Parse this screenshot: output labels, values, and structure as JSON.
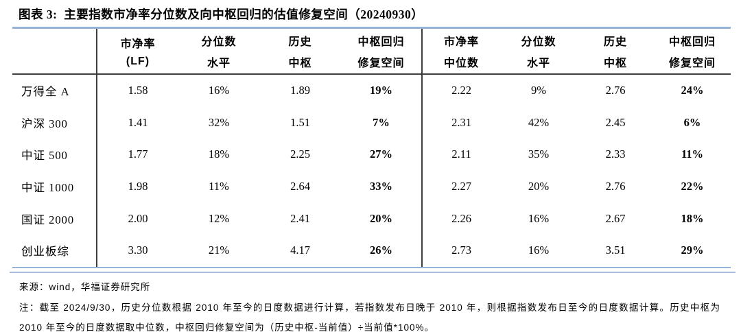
{
  "title": "图表 3:  主要指数市净率分位数及向中枢回归的估值修复空间（20240930）",
  "colors": {
    "accent_blue_line": "#95b3d7",
    "dark_rule": "#3d3d3d",
    "text": "#000000",
    "background": "#ffffff"
  },
  "table": {
    "header_cols": [
      {
        "l1": "市净率",
        "l2": "(LF)"
      },
      {
        "l1": "分位数",
        "l2": "水平"
      },
      {
        "l1": "历史",
        "l2": "中枢"
      },
      {
        "l1": "中枢回归",
        "l2": "修复空间"
      },
      {
        "l1": "市净率",
        "l2": "中位数"
      },
      {
        "l1": "分位数",
        "l2": "水平"
      },
      {
        "l1": "历史",
        "l2": "中枢"
      },
      {
        "l1": "中枢回归",
        "l2": "修复空间"
      }
    ],
    "rows": [
      {
        "label": "万得全 A",
        "values": [
          "1.58",
          "16%",
          "1.89",
          "19%",
          "2.22",
          "9%",
          "2.76",
          "24%"
        ]
      },
      {
        "label": "沪深 300",
        "values": [
          "1.41",
          "32%",
          "1.51",
          "7%",
          "2.31",
          "42%",
          "2.45",
          "6%"
        ]
      },
      {
        "label": "中证 500",
        "values": [
          "1.77",
          "18%",
          "2.25",
          "27%",
          "2.11",
          "35%",
          "2.33",
          "11%"
        ]
      },
      {
        "label": "中证 1000",
        "values": [
          "1.98",
          "11%",
          "2.64",
          "33%",
          "2.27",
          "20%",
          "2.76",
          "22%"
        ]
      },
      {
        "label": "国证 2000",
        "values": [
          "2.00",
          "12%",
          "2.41",
          "20%",
          "2.26",
          "16%",
          "2.67",
          "18%"
        ]
      },
      {
        "label": "创业板综",
        "values": [
          "3.30",
          "21%",
          "4.17",
          "26%",
          "2.73",
          "16%",
          "3.51",
          "29%"
        ]
      }
    ]
  },
  "footer": {
    "source": "来源：wind，华福证券研究所",
    "note": "注：截至 2024/9/30，历史分位数根据 2010 年至今的日度数据进行计算，若指数发布日晚于 2010 年，则根据指数发布日至今的日度数据计算。历史中枢为 2010 年至今的日度数据取中位数，中枢回归修复空间为（历史中枢-当前值）÷当前值*100%。"
  }
}
